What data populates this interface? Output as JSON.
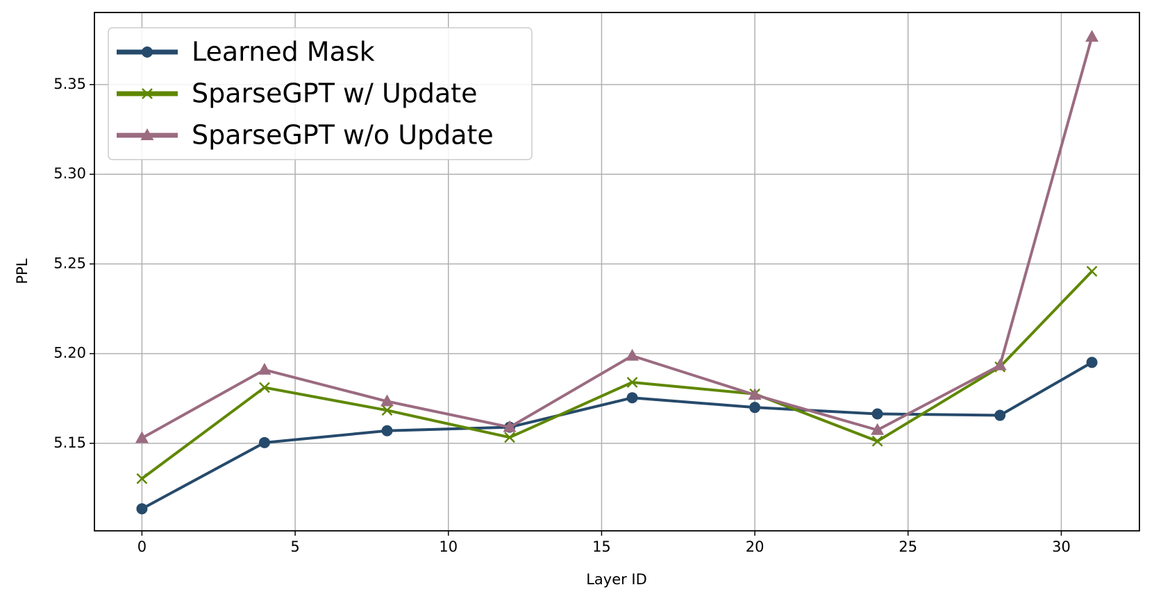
{
  "chart_data": {
    "type": "line",
    "x_label": "Layer ID",
    "y_label": "PPL",
    "x": [
      0,
      4,
      8,
      12,
      16,
      20,
      24,
      28,
      31
    ],
    "series": [
      {
        "name": "Learned Mask",
        "color": "#264a6b",
        "marker": "circle",
        "values": [
          5.1135,
          5.1504,
          5.157,
          5.159,
          5.1754,
          5.17,
          5.1664,
          5.1656,
          5.1951
        ]
      },
      {
        "name": "SparseGPT w/ Update",
        "color": "#5f8700",
        "marker": "x",
        "values": [
          5.1303,
          5.1811,
          5.1684,
          5.1533,
          5.184,
          5.1775,
          5.1512,
          5.1926,
          5.2459
        ]
      },
      {
        "name": "SparseGPT w/o Update",
        "color": "#9b6b80",
        "marker": "triangle",
        "values": [
          5.1529,
          5.191,
          5.1734,
          5.159,
          5.1988,
          5.177,
          5.1574,
          5.1934,
          5.3766
        ]
      }
    ],
    "xlim": [
      -1.55,
      32.55
    ],
    "ylim": [
      5.1012,
      5.3902
    ],
    "xticks": [
      0,
      5,
      10,
      15,
      20,
      25,
      30
    ],
    "yticks": [
      5.15,
      {
        "value": 5.2,
        "label": "5.20"
      },
      5.25,
      {
        "value": 5.3,
        "label": "5.30"
      },
      5.35
    ],
    "grid": true,
    "legend": "upper-left"
  }
}
